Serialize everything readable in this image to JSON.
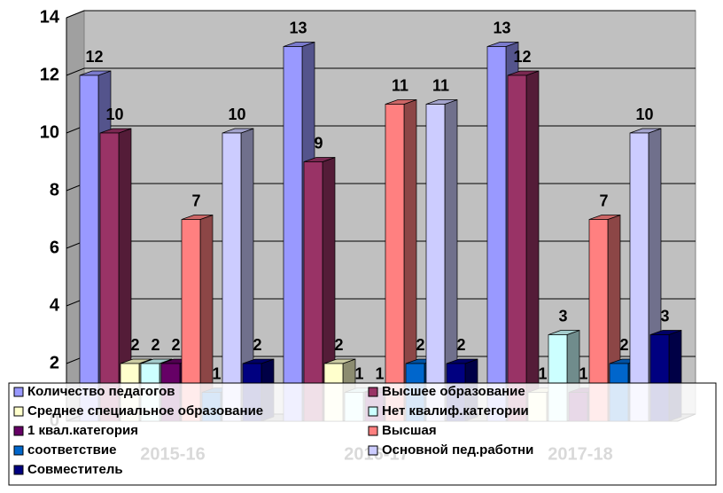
{
  "chart_data": {
    "type": "bar3d",
    "categories": [
      "2015-16",
      "2016-17",
      "2017-18"
    ],
    "series": [
      {
        "name": "Количество педагогов",
        "color": "#9999ff",
        "values": [
          12,
          13,
          13
        ]
      },
      {
        "name": "Высшее образование",
        "color": "#993366",
        "values": [
          10,
          9,
          12
        ]
      },
      {
        "name": "Среднее специальное образование",
        "color": "#ffffcc",
        "values": [
          2,
          2,
          1
        ]
      },
      {
        "name": "Нет квалиф.категории",
        "color": "#ccffff",
        "values": [
          2,
          1,
          3
        ]
      },
      {
        "name": "1 квал.категория",
        "color": "#660066",
        "values": [
          2,
          1,
          1
        ]
      },
      {
        "name": "Высшая",
        "color": "#ff8080",
        "values": [
          7,
          11,
          7
        ]
      },
      {
        "name": "соответствие",
        "color": "#0066cc",
        "values": [
          1,
          2,
          2
        ]
      },
      {
        "name": "Основной пед.работни",
        "color": "#ccccff",
        "values": [
          10,
          11,
          10
        ]
      },
      {
        "name": "Совместитель",
        "color": "#000080",
        "values": [
          2,
          2,
          3
        ]
      }
    ],
    "ylim": [
      0,
      14
    ],
    "yticks": [
      0,
      2,
      4,
      6,
      8,
      10,
      12,
      14
    ],
    "grid": true,
    "legend": "bottom"
  }
}
